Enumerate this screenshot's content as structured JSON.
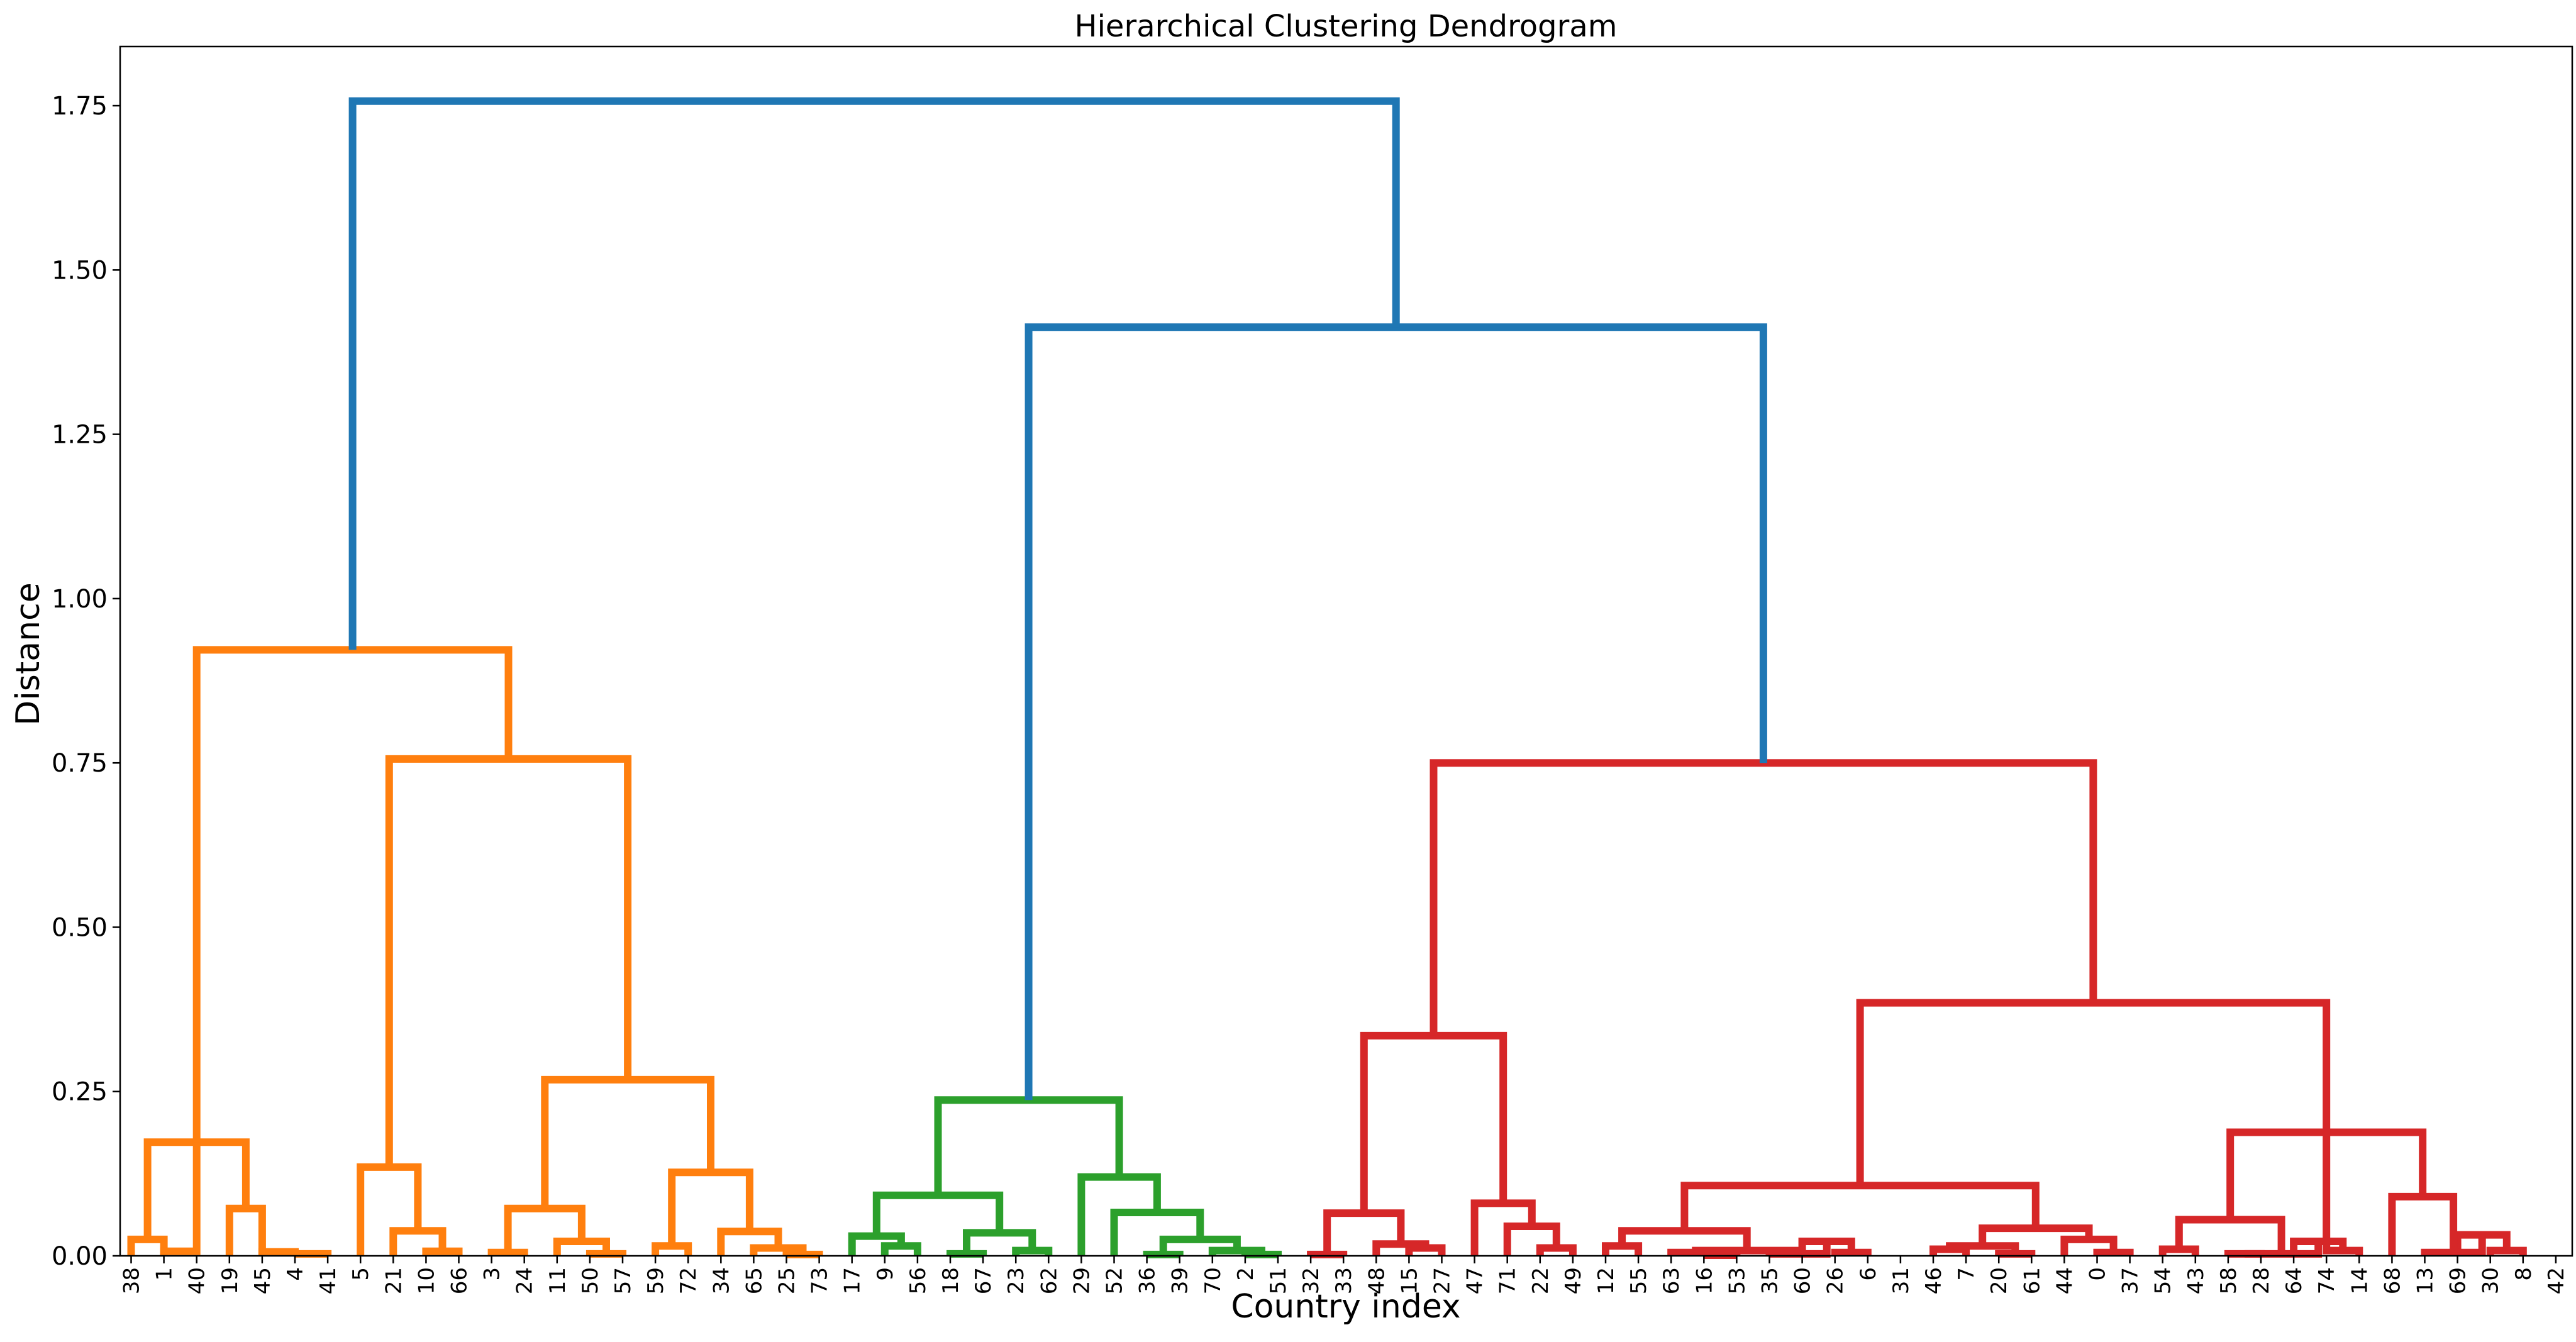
{
  "chart_data": {
    "type": "dendrogram",
    "title": "Hierarchical Clustering Dendrogram",
    "xlabel": "Country index",
    "ylabel": "Distance",
    "ylim": [
      0,
      1.84
    ],
    "yticks": [
      "0.00",
      "0.25",
      "0.50",
      "0.75",
      "1.00",
      "1.25",
      "1.50",
      "1.75"
    ],
    "ytick_values": [
      0,
      0.25,
      0.5,
      0.75,
      1.0,
      1.25,
      1.5,
      1.75
    ],
    "grid": false,
    "leaves": [
      "38",
      "1",
      "40",
      "19",
      "45",
      "4",
      "41",
      "5",
      "21",
      "10",
      "66",
      "3",
      "24",
      "11",
      "50",
      "57",
      "59",
      "72",
      "34",
      "65",
      "25",
      "73",
      "17",
      "9",
      "56",
      "18",
      "67",
      "23",
      "62",
      "29",
      "52",
      "36",
      "39",
      "70",
      "2",
      "51",
      "32",
      "33",
      "48",
      "15",
      "27",
      "47",
      "71",
      "22",
      "49",
      "12",
      "55",
      "63",
      "16",
      "53",
      "35",
      "60",
      "26",
      "6",
      "31",
      "46",
      "7",
      "20",
      "61",
      "44",
      "0",
      "37",
      "54",
      "43",
      "58",
      "28",
      "64",
      "74",
      "14",
      "68",
      "13",
      "69",
      "30",
      "8",
      "42"
    ],
    "colors": {
      "orange": "#ff7f0e",
      "green": "#2ca02c",
      "red": "#d62728",
      "blue": "#1f77b4"
    },
    "links": [
      {
        "a": 0,
        "b": 1,
        "h": 0.025,
        "c": "orange"
      },
      {
        "a": 1,
        "b": 2,
        "h": 0.007,
        "c": "orange"
      },
      {
        "a": 5,
        "b": 6,
        "h": 0.003,
        "c": "orange"
      },
      {
        "a": 4,
        "b": 5,
        "h": 0.006,
        "c": "orange"
      },
      {
        "a": 3,
        "b": 4,
        "h": 0.072,
        "c": "orange"
      },
      {
        "a": 0.5,
        "b": 3.5,
        "h": 0.173,
        "c": "orange"
      },
      {
        "a": 9,
        "b": 10,
        "h": 0.007,
        "c": "orange"
      },
      {
        "a": 8,
        "b": 9.5,
        "h": 0.038,
        "c": "orange"
      },
      {
        "a": 7,
        "b": 8.75,
        "h": 0.135,
        "c": "orange"
      },
      {
        "a": 11,
        "b": 12,
        "h": 0.005,
        "c": "orange"
      },
      {
        "a": 14,
        "b": 15,
        "h": 0.003,
        "c": "orange"
      },
      {
        "a": 13,
        "b": 14.5,
        "h": 0.022,
        "c": "orange"
      },
      {
        "a": 11.5,
        "b": 13.75,
        "h": 0.072,
        "c": "orange"
      },
      {
        "a": 16,
        "b": 17,
        "h": 0.015,
        "c": "orange"
      },
      {
        "a": 20,
        "b": 21,
        "h": 0.002,
        "c": "orange"
      },
      {
        "a": 19,
        "b": 20.5,
        "h": 0.012,
        "c": "orange"
      },
      {
        "a": 18,
        "b": 19.75,
        "h": 0.037,
        "c": "orange"
      },
      {
        "a": 16.5,
        "b": 18.875,
        "h": 0.127,
        "c": "orange"
      },
      {
        "a": 12.625,
        "b": 17.6875,
        "h": 0.268,
        "c": "orange"
      },
      {
        "a": 7.875,
        "b": 15.15625,
        "h": 0.756,
        "c": "orange"
      },
      {
        "a": 2,
        "b": 11.515625,
        "h": 0.922,
        "c": "orange"
      },
      {
        "a": 23,
        "b": 24,
        "h": 0.015,
        "c": "green"
      },
      {
        "a": 22,
        "b": 23.5,
        "h": 0.03,
        "c": "green"
      },
      {
        "a": 25,
        "b": 26,
        "h": 0.003,
        "c": "green"
      },
      {
        "a": 27,
        "b": 28,
        "h": 0.008,
        "c": "green"
      },
      {
        "a": 25.5,
        "b": 27.5,
        "h": 0.035,
        "c": "green"
      },
      {
        "a": 22.75,
        "b": 26.5,
        "h": 0.092,
        "c": "green"
      },
      {
        "a": 31,
        "b": 32,
        "h": 0.002,
        "c": "green"
      },
      {
        "a": 34,
        "b": 35,
        "h": 0.002,
        "c": "green"
      },
      {
        "a": 33,
        "b": 34.5,
        "h": 0.008,
        "c": "green"
      },
      {
        "a": 31.5,
        "b": 33.75,
        "h": 0.025,
        "c": "green"
      },
      {
        "a": 30,
        "b": 32.625,
        "h": 0.066,
        "c": "green"
      },
      {
        "a": 29,
        "b": 31.3125,
        "h": 0.12,
        "c": "green"
      },
      {
        "a": 24.625,
        "b": 30.15625,
        "h": 0.237,
        "c": "green"
      },
      {
        "a": 36,
        "b": 37,
        "h": 0.002,
        "c": "red"
      },
      {
        "a": 39,
        "b": 40,
        "h": 0.012,
        "c": "red"
      },
      {
        "a": 38,
        "b": 39.5,
        "h": 0.018,
        "c": "red"
      },
      {
        "a": 36.5,
        "b": 38.75,
        "h": 0.065,
        "c": "red"
      },
      {
        "a": 43,
        "b": 44,
        "h": 0.012,
        "c": "red"
      },
      {
        "a": 42,
        "b": 43.5,
        "h": 0.045,
        "c": "red"
      },
      {
        "a": 41,
        "b": 42.75,
        "h": 0.08,
        "c": "red"
      },
      {
        "a": 37.625,
        "b": 41.875,
        "h": 0.335,
        "c": "red"
      },
      {
        "a": 45,
        "b": 46,
        "h": 0.015,
        "c": "red"
      },
      {
        "a": 48,
        "b": 49,
        "h": 0.001,
        "c": "red"
      },
      {
        "a": 47,
        "b": 48.5,
        "h": 0.005,
        "c": "red"
      },
      {
        "a": 52,
        "b": 53,
        "h": 0.005,
        "c": "red"
      },
      {
        "a": 51,
        "b": 52.5,
        "h": 0.022,
        "c": "red"
      },
      {
        "a": 50,
        "b": 51.75,
        "h": 0.003,
        "c": "red"
      },
      {
        "a": 47.75,
        "b": 50.875,
        "h": 0.008,
        "c": "red"
      },
      {
        "a": 45.5,
        "b": 49.3125,
        "h": 0.038,
        "c": "red"
      },
      {
        "a": 55,
        "b": 56,
        "h": 0.01,
        "c": "red"
      },
      {
        "a": 57,
        "b": 58,
        "h": 0.003,
        "c": "red"
      },
      {
        "a": 55.5,
        "b": 57.5,
        "h": 0.015,
        "c": "red"
      },
      {
        "a": 60,
        "b": 61,
        "h": 0.005,
        "c": "red"
      },
      {
        "a": 59,
        "b": 60.5,
        "h": 0.025,
        "c": "red"
      },
      {
        "a": 56.5,
        "b": 59.75,
        "h": 0.042,
        "c": "red"
      },
      {
        "a": 47.40625,
        "b": 58.125,
        "h": 0.107,
        "c": "red"
      },
      {
        "a": 62,
        "b": 63,
        "h": 0.01,
        "c": "red"
      },
      {
        "a": 64,
        "b": 65,
        "h": 0.003,
        "c": "red"
      },
      {
        "a": 67,
        "b": 68,
        "h": 0.008,
        "c": "red"
      },
      {
        "a": 66,
        "b": 67.5,
        "h": 0.022,
        "c": "red"
      },
      {
        "a": 64.5,
        "b": 66.75,
        "h": 0.003,
        "c": "red"
      },
      {
        "a": 62.5,
        "b": 65.625,
        "h": 0.055,
        "c": "red"
      },
      {
        "a": 72,
        "b": 73,
        "h": 0.008,
        "c": "red"
      },
      {
        "a": 71,
        "b": 72.5,
        "h": 0.032,
        "c": "red"
      },
      {
        "a": 70,
        "b": 71.75,
        "h": 0.005,
        "c": "red"
      },
      {
        "a": 69,
        "b": 70.875,
        "h": 0.09,
        "c": "red"
      },
      {
        "a": 64.0625,
        "b": 69.9375,
        "h": 0.188,
        "c": "red"
      },
      {
        "a": 52.765625,
        "b": 67,
        "h": 0.385,
        "c": "red"
      },
      {
        "a": 39.75,
        "b": 59.8828125,
        "h": 0.75,
        "c": "red"
      },
      {
        "a": 27.390625,
        "b": 49.81640625,
        "h": 1.413,
        "c": "blue"
      },
      {
        "a": 6.7578125,
        "b": 38.603515625,
        "h": 1.757,
        "c": "blue"
      }
    ]
  }
}
